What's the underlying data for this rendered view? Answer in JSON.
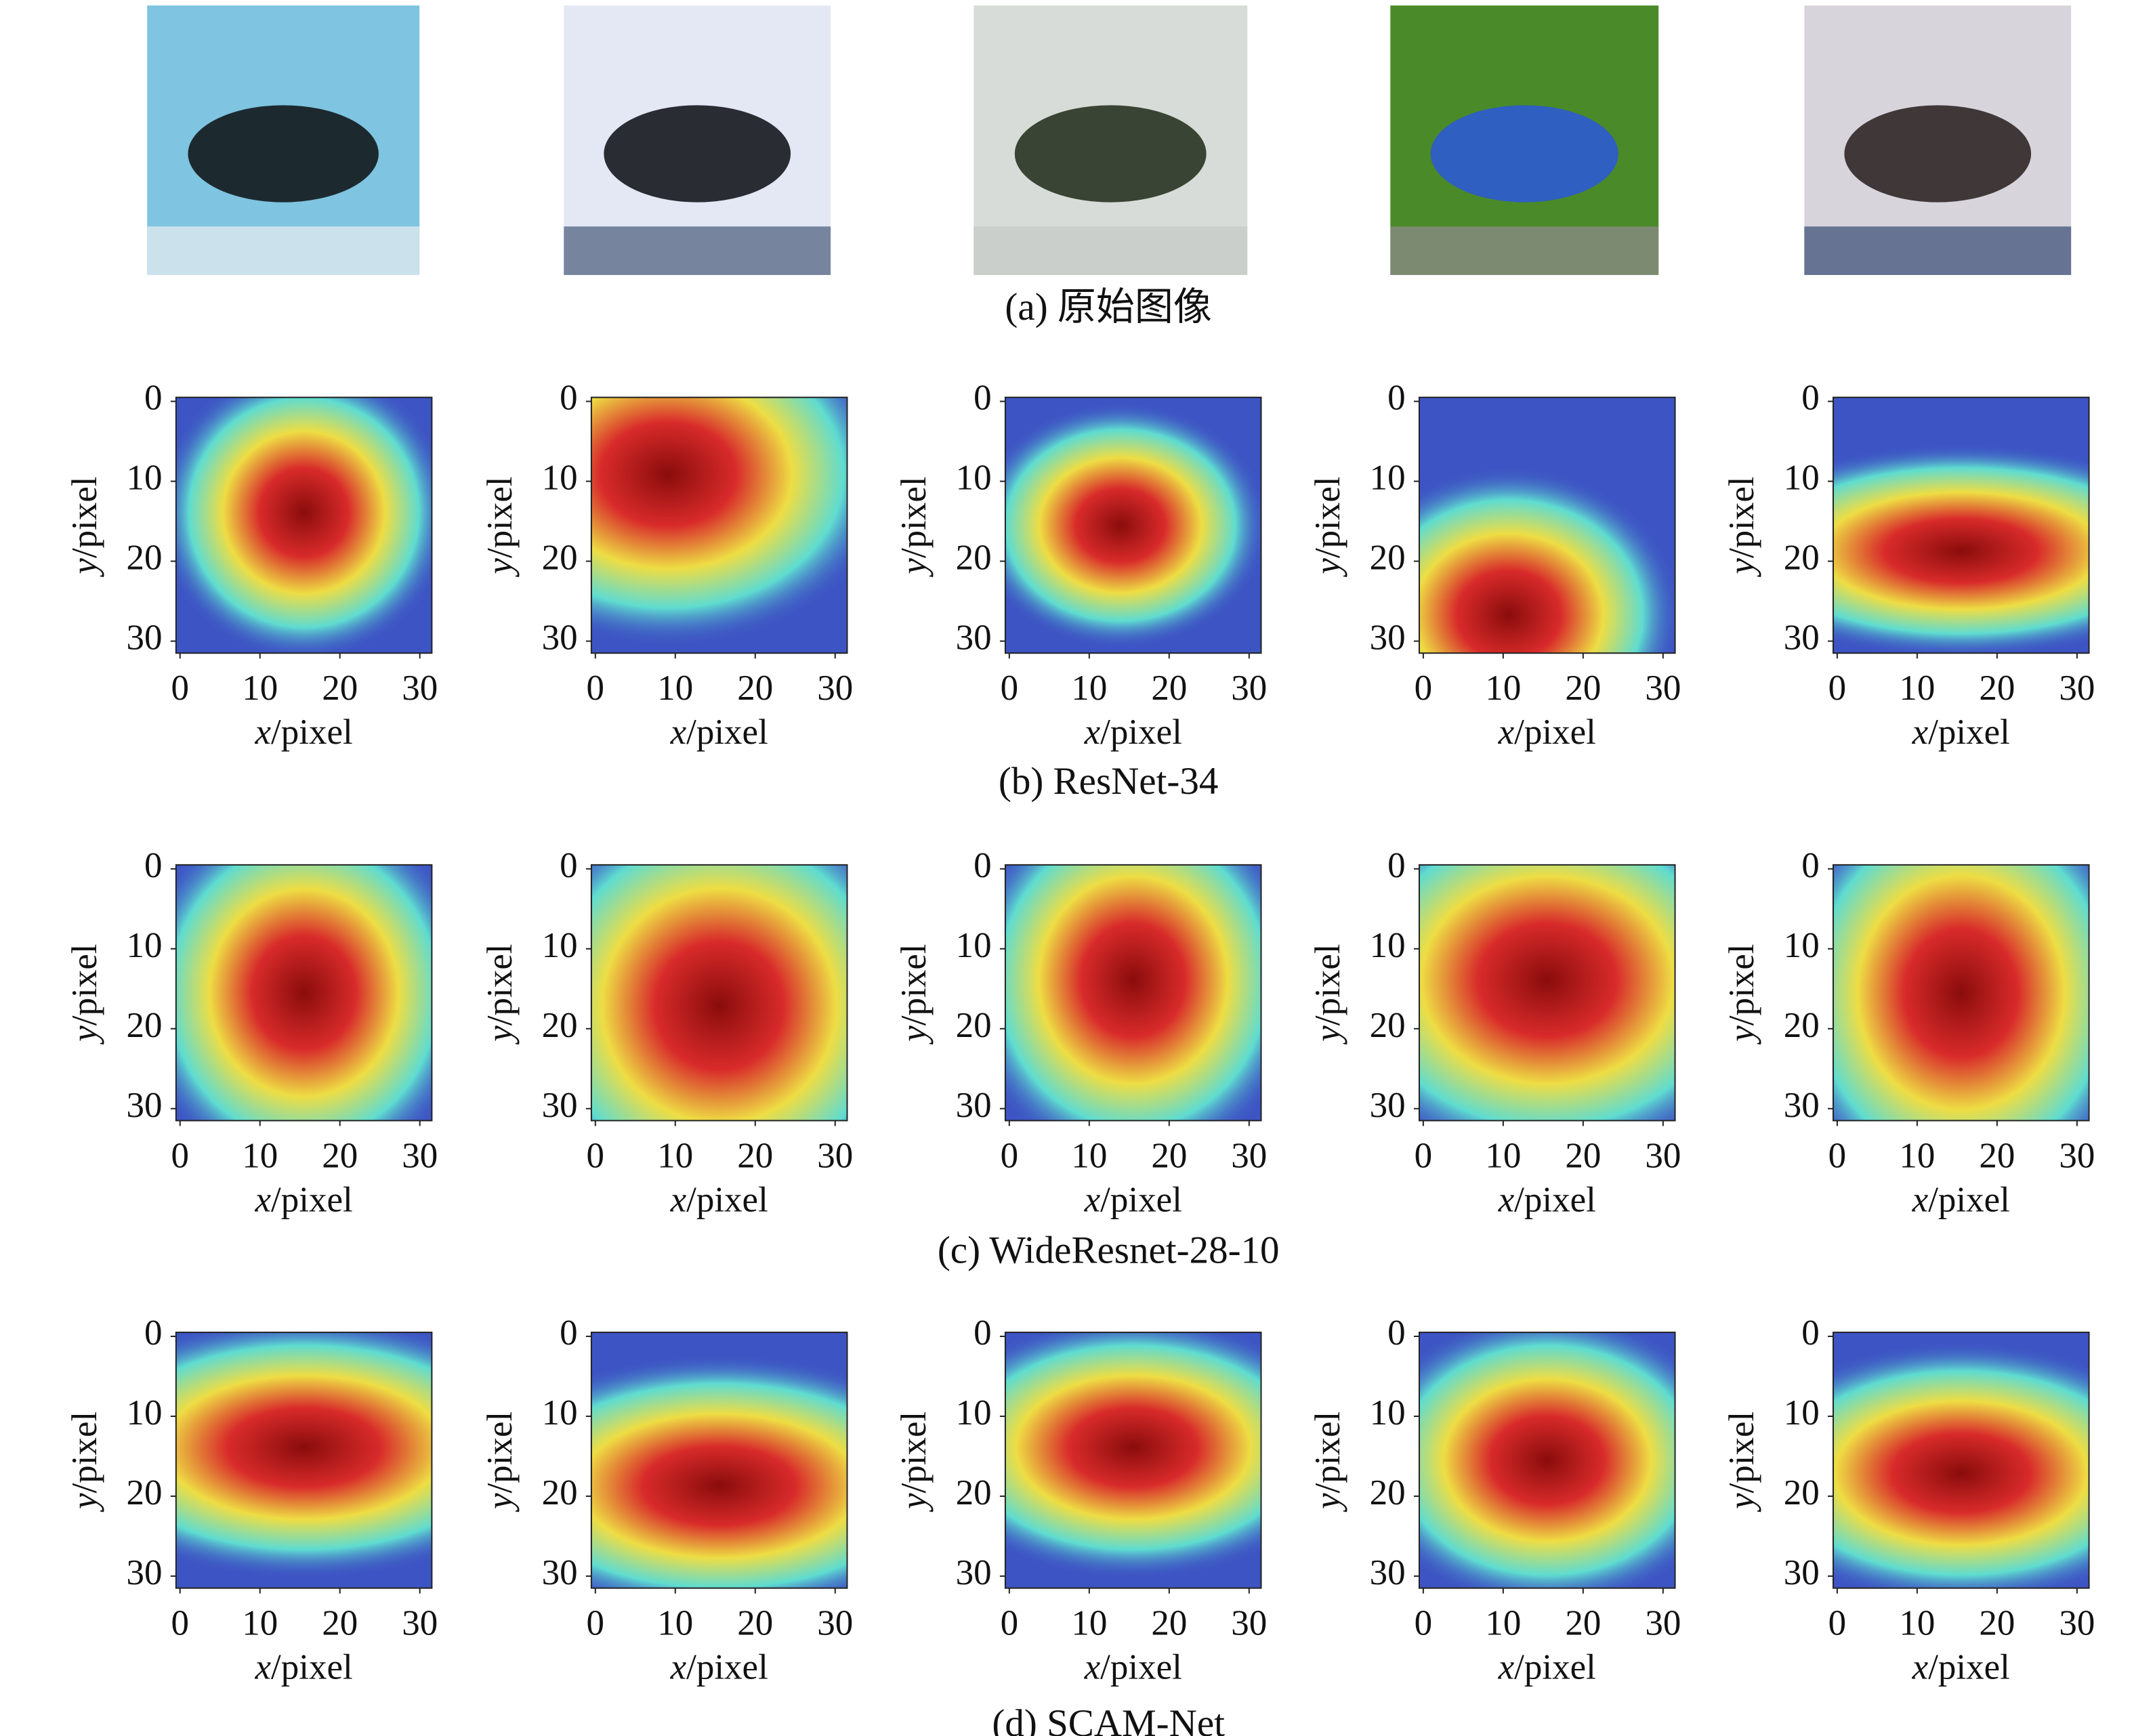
{
  "figure": {
    "rows": [
      {
        "caption": "(a) 原始图像"
      },
      {
        "caption": "(b) ResNet-34"
      },
      {
        "caption": "(c) WideResnet-28-10"
      },
      {
        "caption": "(d) SCAM-Net"
      }
    ],
    "axes": {
      "xlabel": {
        "var": "x",
        "unit": "/pixel"
      },
      "ylabel": {
        "var": "y",
        "unit": "/pixel"
      },
      "xlim": [
        -0.5,
        31.5
      ],
      "ylim": [
        -0.5,
        31.5
      ],
      "xticks": [
        0,
        10,
        20,
        30
      ],
      "yticks": [
        0,
        10,
        20,
        30
      ]
    }
  }
}
